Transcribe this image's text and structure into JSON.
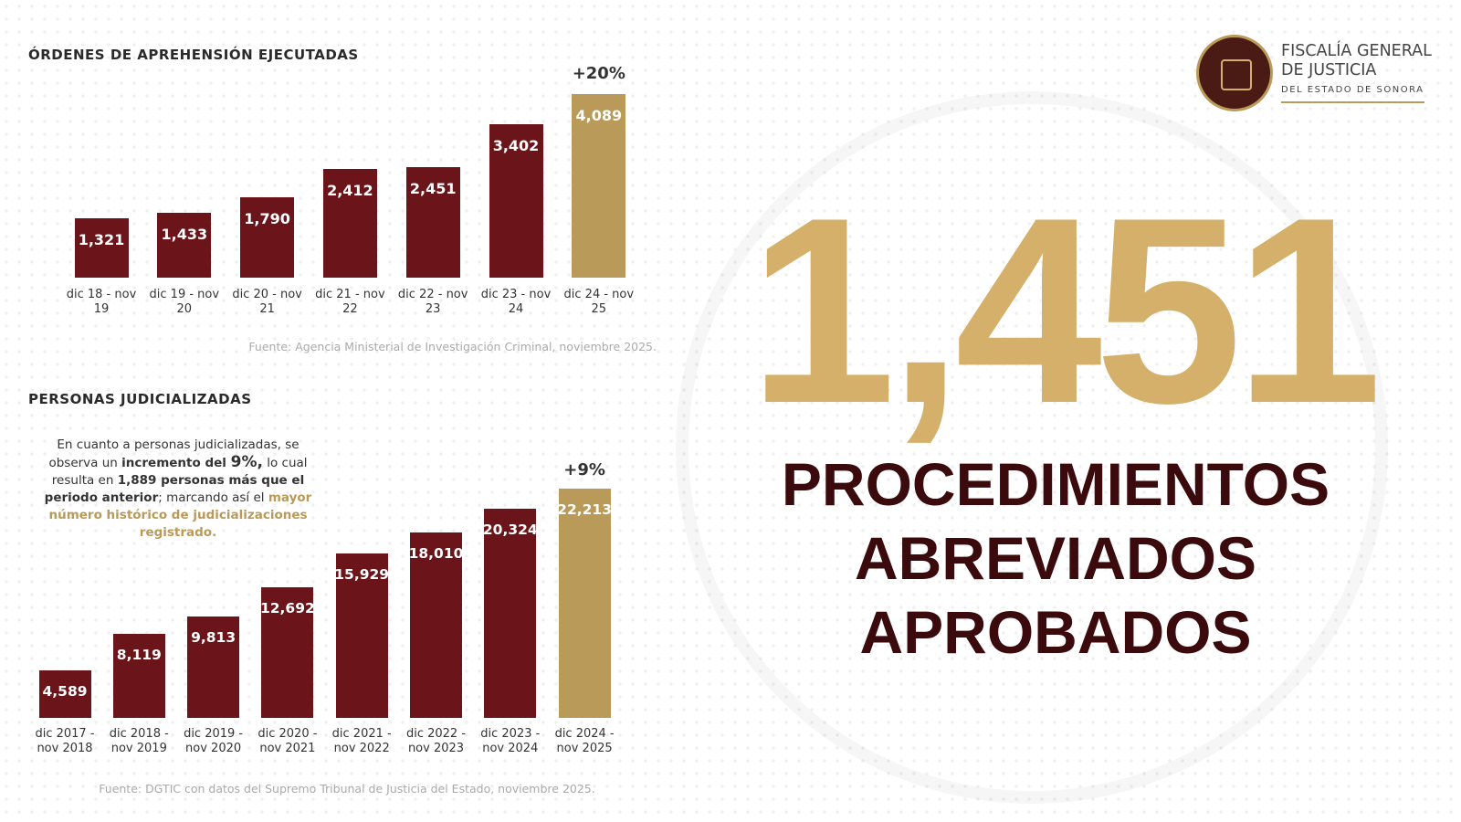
{
  "logo": {
    "line1": "FISCALÍA GENERAL",
    "line2": "DE JUSTICIA",
    "line3": "DEL ESTADO DE SONORA"
  },
  "headline": {
    "number": "1,451",
    "line1": "PROCEDIMIENTOS",
    "line2": "ABREVIADOS",
    "line3": "APROBADOS"
  },
  "note": [
    {
      "text": "En cuanto a personas judicializadas, se observa un ",
      "style": "normal"
    },
    {
      "text": "incremento del ",
      "style": "bold"
    },
    {
      "text": "9%,",
      "style": "big"
    },
    {
      "text": " lo cual resulta en ",
      "style": "normal"
    },
    {
      "text": "1,889",
      "style": "bold"
    },
    {
      "text": " personas más que el periodo anterior",
      "style": "bold"
    },
    {
      "text": "; marcando así el ",
      "style": "normal"
    },
    {
      "text": "mayor número histórico de judicializaciones registrado.",
      "style": "gold"
    }
  ],
  "chart_data": [
    {
      "type": "bar",
      "title": "ÓRDENES DE APREHENSIÓN EJECUTADAS",
      "categories": [
        "dic 18 - nov 19",
        "dic 19 - nov 20",
        "dic 20 - nov 21",
        "dic 21 - nov 22",
        "dic 22 - nov 23",
        "dic 23 - nov 24",
        "dic 24 - nov 25"
      ],
      "values": [
        1321,
        1433,
        1790,
        2412,
        2451,
        3402,
        4089
      ],
      "value_labels": [
        "1,321",
        "1,433",
        "1,790",
        "2,412",
        "2,451",
        "3,402",
        "4,089"
      ],
      "colors": [
        "#6b1419",
        "#6b1419",
        "#6b1419",
        "#6b1419",
        "#6b1419",
        "#6b1419",
        "#b99a58"
      ],
      "ylim": [
        0,
        4100
      ],
      "annotation": "+20%",
      "source": "Fuente: Agencia Ministerial de Investigación Criminal, noviembre 2025."
    },
    {
      "type": "bar",
      "title": "PERSONAS JUDICIALIZADAS",
      "categories": [
        "dic 2017 - nov 2018",
        "dic 2018 - nov 2019",
        "dic 2019 - nov 2020",
        "dic 2020 - nov 2021",
        "dic 2021 - nov 2022",
        "dic 2022 - nov 2023",
        "dic 2023 - nov 2024",
        "dic 2024 - nov 2025"
      ],
      "values": [
        4589,
        8119,
        9813,
        12692,
        15929,
        18010,
        20324,
        22213
      ],
      "value_labels": [
        "4,589",
        "8,119",
        "9,813",
        "12,692",
        "15,929",
        "18,010",
        "20,324",
        "22,213"
      ],
      "colors": [
        "#6b1419",
        "#6b1419",
        "#6b1419",
        "#6b1419",
        "#6b1419",
        "#6b1419",
        "#6b1419",
        "#b99a58"
      ],
      "ylim": [
        0,
        22500
      ],
      "annotation": "+9%",
      "source": "Fuente: DGTIC con datos del Supremo Tribunal de Justicia del Estado, noviembre 2025."
    }
  ]
}
